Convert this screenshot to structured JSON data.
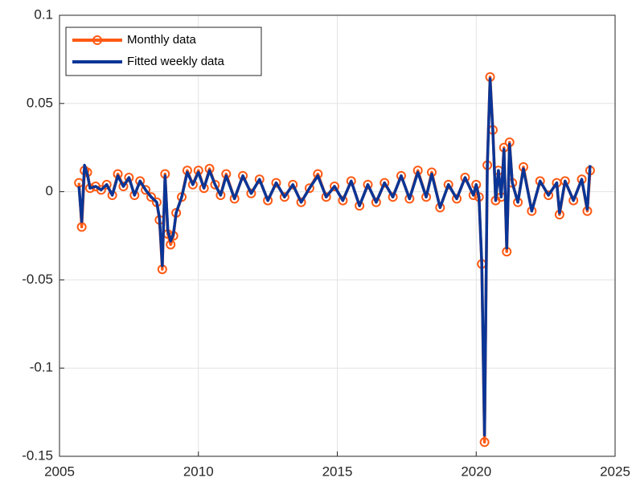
{
  "chart_data": {
    "type": "line",
    "x": [
      2005.7,
      2005.8,
      2005.9,
      2006.0,
      2006.1,
      2006.3,
      2006.5,
      2006.7,
      2006.9,
      2007.1,
      2007.3,
      2007.5,
      2007.7,
      2007.9,
      2008.1,
      2008.3,
      2008.5,
      2008.6,
      2008.7,
      2008.8,
      2008.9,
      2009.0,
      2009.1,
      2009.2,
      2009.4,
      2009.6,
      2009.8,
      2010.0,
      2010.2,
      2010.4,
      2010.6,
      2010.8,
      2011.0,
      2011.3,
      2011.6,
      2011.9,
      2012.2,
      2012.5,
      2012.8,
      2013.1,
      2013.4,
      2013.7,
      2014.0,
      2014.3,
      2014.6,
      2014.9,
      2015.2,
      2015.5,
      2015.8,
      2016.1,
      2016.4,
      2016.7,
      2017.0,
      2017.3,
      2017.6,
      2017.9,
      2018.2,
      2018.4,
      2018.7,
      2019.0,
      2019.3,
      2019.6,
      2019.9,
      2020.0,
      2020.1,
      2020.2,
      2020.3,
      2020.4,
      2020.5,
      2020.6,
      2020.7,
      2020.8,
      2020.9,
      2021.0,
      2021.1,
      2021.2,
      2021.3,
      2021.5,
      2021.7,
      2022.0,
      2022.3,
      2022.6,
      2022.9,
      2023.0,
      2023.2,
      2023.5,
      2023.8,
      2024.0,
      2024.1
    ],
    "series": [
      {
        "name": "Monthly data",
        "color": "#ff5a14",
        "marker": "circle",
        "values": [
          0.005,
          -0.02,
          0.012,
          0.011,
          0.002,
          0.003,
          0.001,
          0.004,
          -0.002,
          0.01,
          0.003,
          0.008,
          -0.002,
          0.006,
          0.001,
          -0.003,
          -0.006,
          -0.016,
          -0.044,
          0.01,
          -0.024,
          -0.03,
          -0.025,
          -0.012,
          -0.003,
          0.012,
          0.004,
          0.012,
          0.002,
          0.013,
          0.004,
          -0.002,
          0.01,
          -0.004,
          0.009,
          -0.001,
          0.007,
          -0.005,
          0.005,
          -0.003,
          0.004,
          -0.006,
          0.002,
          0.01,
          -0.003,
          0.003,
          -0.005,
          0.006,
          -0.008,
          0.004,
          -0.006,
          0.005,
          -0.003,
          0.009,
          -0.004,
          0.012,
          -0.003,
          0.011,
          -0.009,
          0.004,
          -0.004,
          0.008,
          -0.002,
          0.004,
          -0.003,
          -0.041,
          -0.142,
          0.015,
          0.065,
          0.035,
          -0.005,
          0.012,
          -0.003,
          0.025,
          -0.034,
          0.028,
          0.005,
          -0.006,
          0.014,
          -0.011,
          0.006,
          -0.002,
          0.005,
          -0.013,
          0.006,
          -0.005,
          0.007,
          -0.011,
          0.012
        ]
      },
      {
        "name": "Fitted weekly data",
        "color": "#0a3596",
        "marker": "none",
        "values": [
          0.003,
          -0.017,
          0.015,
          0.01,
          0.002,
          0.003,
          0.001,
          0.004,
          -0.002,
          0.009,
          0.003,
          0.008,
          -0.002,
          0.006,
          0.001,
          -0.003,
          -0.006,
          -0.015,
          -0.042,
          0.009,
          -0.022,
          -0.028,
          -0.024,
          -0.012,
          -0.003,
          0.011,
          0.004,
          0.011,
          0.002,
          0.012,
          0.004,
          -0.002,
          0.009,
          -0.004,
          0.009,
          -0.001,
          0.007,
          -0.005,
          0.005,
          -0.003,
          0.004,
          -0.006,
          0.002,
          0.009,
          -0.003,
          0.003,
          -0.005,
          0.006,
          -0.008,
          0.004,
          -0.006,
          0.005,
          -0.003,
          0.009,
          -0.004,
          0.011,
          -0.003,
          0.01,
          -0.009,
          0.004,
          -0.004,
          0.008,
          -0.002,
          0.004,
          -0.003,
          -0.04,
          -0.138,
          0.014,
          0.064,
          0.034,
          -0.005,
          0.012,
          -0.003,
          0.024,
          -0.032,
          0.027,
          0.005,
          -0.006,
          0.013,
          -0.011,
          0.006,
          -0.002,
          0.005,
          -0.012,
          0.006,
          -0.005,
          0.007,
          -0.01,
          0.015
        ]
      }
    ],
    "xlim": [
      2005,
      2025
    ],
    "xticks": [
      2005,
      2010,
      2015,
      2020,
      2025
    ],
    "ylim": [
      -0.15,
      0.1
    ],
    "yticks": [
      -0.15,
      -0.1,
      -0.05,
      0,
      0.05,
      0.1
    ],
    "grid": true,
    "legend": "top-left"
  }
}
